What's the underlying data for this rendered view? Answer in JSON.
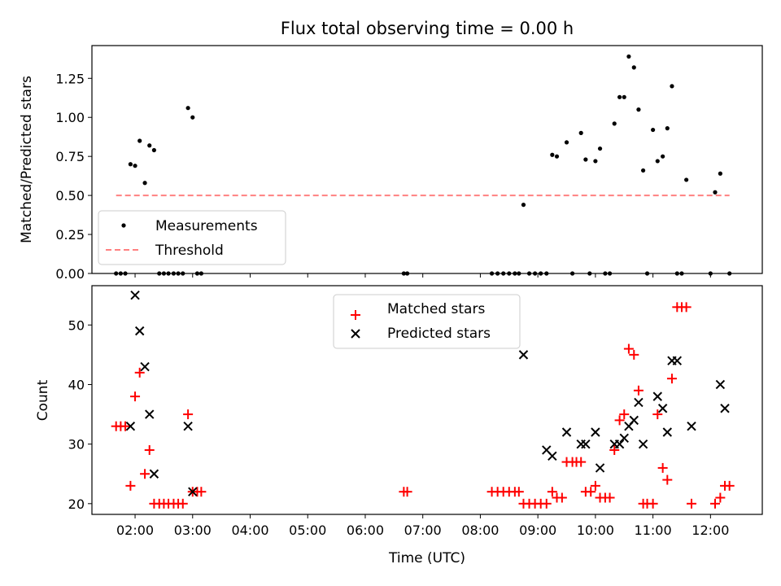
{
  "chart_data": [
    {
      "type": "scatter",
      "title": "Flux total observing time = 0.00 h",
      "xlabel": "",
      "ylabel": "Matched/Predicted stars",
      "xlim": [
        1.25,
        12.9
      ],
      "ylim": [
        0,
        1.46
      ],
      "yticks": [
        0,
        0.25,
        0.5,
        0.75,
        1.0,
        1.25
      ],
      "ytick_labels": [
        "0.00",
        "0.25",
        "0.50",
        "0.75",
        "1.00",
        "1.25"
      ],
      "grid": false,
      "legend": {
        "placement": "lower-left",
        "entries": [
          "Measurements",
          "Threshold"
        ]
      },
      "colors": {
        "measurements": "#000000",
        "threshold": "#ff8080"
      },
      "threshold": {
        "name": "Threshold",
        "y": 0.5,
        "x_start": 1.67,
        "x_end": 12.33
      },
      "series": [
        {
          "name": "Measurements",
          "points": [
            [
              1.67,
              0
            ],
            [
              1.75,
              0
            ],
            [
              1.83,
              0
            ],
            [
              1.92,
              0.7
            ],
            [
              2.0,
              0.69
            ],
            [
              2.08,
              0.85
            ],
            [
              2.17,
              0.58
            ],
            [
              2.25,
              0.82
            ],
            [
              2.33,
              0.79
            ],
            [
              2.42,
              0
            ],
            [
              2.5,
              0
            ],
            [
              2.58,
              0
            ],
            [
              2.67,
              0
            ],
            [
              2.75,
              0
            ],
            [
              2.83,
              0
            ],
            [
              2.92,
              1.06
            ],
            [
              3.0,
              1.0
            ],
            [
              3.08,
              0
            ],
            [
              3.15,
              0
            ],
            [
              6.67,
              0
            ],
            [
              6.73,
              0
            ],
            [
              8.2,
              0
            ],
            [
              8.3,
              0
            ],
            [
              8.4,
              0
            ],
            [
              8.5,
              0
            ],
            [
              8.6,
              0
            ],
            [
              8.67,
              0
            ],
            [
              8.75,
              0.44
            ],
            [
              8.85,
              0
            ],
            [
              8.95,
              0
            ],
            [
              9.05,
              0
            ],
            [
              9.15,
              0
            ],
            [
              9.25,
              0.76
            ],
            [
              9.33,
              0.75
            ],
            [
              9.5,
              0.84
            ],
            [
              9.6,
              0
            ],
            [
              9.75,
              0.9
            ],
            [
              9.83,
              0.73
            ],
            [
              9.9,
              0
            ],
            [
              10.0,
              0.72
            ],
            [
              10.08,
              0.8
            ],
            [
              10.17,
              0
            ],
            [
              10.25,
              0
            ],
            [
              10.33,
              0.96
            ],
            [
              10.42,
              1.13
            ],
            [
              10.5,
              1.13
            ],
            [
              10.58,
              1.39
            ],
            [
              10.67,
              1.32
            ],
            [
              10.75,
              1.05
            ],
            [
              10.83,
              0.66
            ],
            [
              10.9,
              0
            ],
            [
              11.0,
              0.92
            ],
            [
              11.08,
              0.72
            ],
            [
              11.17,
              0.75
            ],
            [
              11.25,
              0.93
            ],
            [
              11.33,
              1.2
            ],
            [
              11.42,
              0
            ],
            [
              11.5,
              0
            ],
            [
              11.58,
              0.6
            ],
            [
              12.0,
              0
            ],
            [
              12.08,
              0.52
            ],
            [
              12.17,
              0.64
            ],
            [
              12.33,
              0
            ]
          ]
        }
      ]
    },
    {
      "type": "scatter",
      "title": "",
      "xlabel": "Time (UTC)",
      "ylabel": "Count",
      "xlim": [
        1.25,
        12.9
      ],
      "ylim": [
        18.2,
        56.6
      ],
      "xticks": [
        2,
        3,
        4,
        5,
        6,
        7,
        8,
        9,
        10,
        11,
        12
      ],
      "xtick_labels": [
        "02:00",
        "03:00",
        "04:00",
        "05:00",
        "06:00",
        "07:00",
        "08:00",
        "09:00",
        "10:00",
        "11:00",
        "12:00"
      ],
      "yticks": [
        20,
        30,
        40,
        50
      ],
      "ytick_labels": [
        "20",
        "30",
        "40",
        "50"
      ],
      "grid": false,
      "legend": {
        "placement": "top-center",
        "entries": [
          "Matched stars",
          "Predicted stars"
        ]
      },
      "colors": {
        "matched": "#ff0000",
        "predicted": "#000000"
      },
      "series": [
        {
          "name": "Matched stars",
          "marker": "plus",
          "points": [
            [
              1.67,
              33
            ],
            [
              1.75,
              33
            ],
            [
              1.83,
              33
            ],
            [
              1.92,
              23
            ],
            [
              2.0,
              38
            ],
            [
              2.08,
              42
            ],
            [
              2.17,
              25
            ],
            [
              2.25,
              29
            ],
            [
              2.33,
              20
            ],
            [
              2.42,
              20
            ],
            [
              2.5,
              20
            ],
            [
              2.58,
              20
            ],
            [
              2.67,
              20
            ],
            [
              2.75,
              20
            ],
            [
              2.83,
              20
            ],
            [
              2.92,
              35
            ],
            [
              3.0,
              22
            ],
            [
              3.08,
              22
            ],
            [
              3.15,
              22
            ],
            [
              6.67,
              22
            ],
            [
              6.73,
              22
            ],
            [
              8.2,
              22
            ],
            [
              8.3,
              22
            ],
            [
              8.4,
              22
            ],
            [
              8.5,
              22
            ],
            [
              8.6,
              22
            ],
            [
              8.67,
              22
            ],
            [
              8.75,
              20
            ],
            [
              8.85,
              20
            ],
            [
              8.95,
              20
            ],
            [
              9.05,
              20
            ],
            [
              9.15,
              20
            ],
            [
              9.25,
              22
            ],
            [
              9.33,
              21
            ],
            [
              9.42,
              21
            ],
            [
              9.5,
              27
            ],
            [
              9.6,
              27
            ],
            [
              9.67,
              27
            ],
            [
              9.75,
              27
            ],
            [
              9.83,
              22
            ],
            [
              9.92,
              22
            ],
            [
              10.0,
              23
            ],
            [
              10.08,
              21
            ],
            [
              10.17,
              21
            ],
            [
              10.25,
              21
            ],
            [
              10.33,
              29
            ],
            [
              10.42,
              34
            ],
            [
              10.5,
              35
            ],
            [
              10.58,
              46
            ],
            [
              10.67,
              45
            ],
            [
              10.75,
              39
            ],
            [
              10.83,
              20
            ],
            [
              10.9,
              20
            ],
            [
              11.0,
              20
            ],
            [
              11.08,
              35
            ],
            [
              11.17,
              26
            ],
            [
              11.25,
              24
            ],
            [
              11.33,
              41
            ],
            [
              11.42,
              53
            ],
            [
              11.5,
              53
            ],
            [
              11.58,
              53
            ],
            [
              11.67,
              20
            ],
            [
              12.08,
              20
            ],
            [
              12.17,
              21
            ],
            [
              12.25,
              23
            ],
            [
              12.33,
              23
            ]
          ]
        },
        {
          "name": "Predicted stars",
          "marker": "x",
          "points": [
            [
              1.92,
              33
            ],
            [
              2.0,
              55
            ],
            [
              2.08,
              49
            ],
            [
              2.17,
              43
            ],
            [
              2.25,
              35
            ],
            [
              2.33,
              25
            ],
            [
              2.92,
              33
            ],
            [
              3.0,
              22
            ],
            [
              8.75,
              45
            ],
            [
              9.15,
              29
            ],
            [
              9.25,
              28
            ],
            [
              9.5,
              32
            ],
            [
              9.75,
              30
            ],
            [
              9.83,
              30
            ],
            [
              10.0,
              32
            ],
            [
              10.08,
              26
            ],
            [
              10.33,
              30
            ],
            [
              10.42,
              30
            ],
            [
              10.5,
              31
            ],
            [
              10.58,
              33
            ],
            [
              10.67,
              34
            ],
            [
              10.75,
              37
            ],
            [
              10.83,
              30
            ],
            [
              11.08,
              38
            ],
            [
              11.17,
              36
            ],
            [
              11.25,
              32
            ],
            [
              11.33,
              44
            ],
            [
              11.42,
              44
            ],
            [
              11.67,
              33
            ],
            [
              12.17,
              40
            ],
            [
              12.25,
              36
            ]
          ]
        }
      ]
    }
  ]
}
